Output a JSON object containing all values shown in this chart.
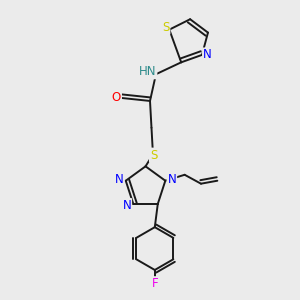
{
  "bg_color": "#ebebeb",
  "bond_color": "#1a1a1a",
  "atom_colors": {
    "N": "#0000ff",
    "S": "#cccc00",
    "O": "#ff0000",
    "F": "#ee00ee",
    "H": "#2d8b8b",
    "C": "#1a1a1a"
  },
  "font_size": 8.5,
  "lw": 1.4
}
